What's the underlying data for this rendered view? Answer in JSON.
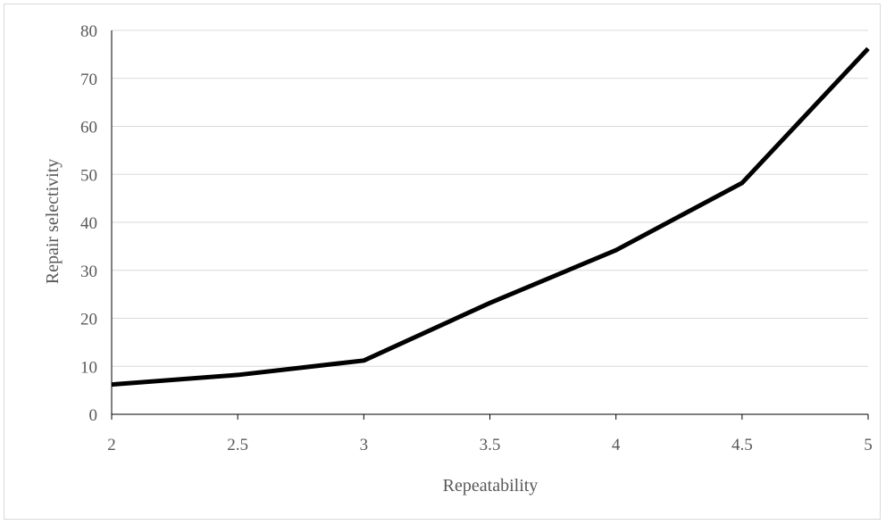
{
  "chart_data": {
    "type": "line",
    "title": "",
    "xlabel": "Repeatability",
    "ylabel": "Repair selectivity",
    "x": [
      2,
      2.5,
      3,
      3.5,
      4,
      4.5,
      5
    ],
    "x_tick_labels": [
      "2",
      "2.5",
      "3",
      "3.5",
      "4",
      "4.5",
      "5"
    ],
    "y_ticks": [
      0,
      10,
      20,
      30,
      40,
      50,
      60,
      70,
      80
    ],
    "y_tick_labels": [
      "0",
      "10",
      "20",
      "30",
      "40",
      "50",
      "60",
      "70",
      "80"
    ],
    "xlim": [
      2,
      5
    ],
    "ylim": [
      0,
      80
    ],
    "grid": "horizontal",
    "legend": "none",
    "series": [
      {
        "values": [
          6.2,
          8.2,
          11.2,
          23.2,
          34.2,
          48.2,
          76.2
        ],
        "color": "#000000"
      }
    ]
  }
}
